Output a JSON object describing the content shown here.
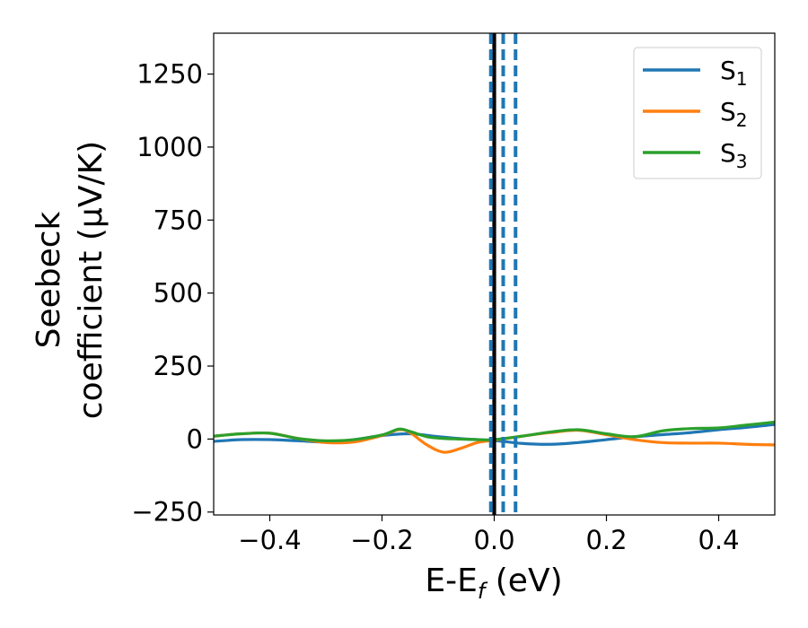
{
  "chart_data": {
    "type": "line",
    "xlabel": {
      "main": "E-E",
      "sub": "f",
      "unit": " (eV)"
    },
    "ylabel": {
      "line1": "Seebeck",
      "line2": "coefficient  (μV/K)"
    },
    "xlim": [
      -0.5,
      0.5
    ],
    "ylim": [
      -260,
      1390
    ],
    "xticks": [
      -0.4,
      -0.2,
      0.0,
      0.2,
      0.4
    ],
    "xtick_labels": [
      "−0.4",
      "−0.2",
      "0.0",
      "0.2",
      "0.4"
    ],
    "yticks": [
      -250,
      0,
      250,
      500,
      750,
      1000,
      1250
    ],
    "ytick_labels": [
      "−250",
      "0",
      "250",
      "500",
      "750",
      "1000",
      "1250"
    ],
    "grid": false,
    "legend_position": "top-right",
    "vlines": [
      {
        "x": 0.0,
        "style": "solid",
        "color": "#000000"
      },
      {
        "x": -0.006,
        "style": "dashed",
        "color": "#1f77b4"
      },
      {
        "x": 0.016,
        "style": "dashed",
        "color": "#1f77b4"
      },
      {
        "x": 0.038,
        "style": "dashed",
        "color": "#1f77b4"
      }
    ],
    "series": [
      {
        "name": "S",
        "sub": "1",
        "color": "#1f77b4",
        "x": [
          -0.5,
          -0.45,
          -0.4,
          -0.35,
          -0.3,
          -0.25,
          -0.2,
          -0.15,
          -0.1,
          -0.05,
          0.0,
          0.05,
          0.1,
          0.15,
          0.2,
          0.25,
          0.3,
          0.35,
          0.4,
          0.45,
          0.5
        ],
        "y": [
          -8,
          -2,
          -2,
          -6,
          -10,
          -2,
          12,
          18,
          8,
          0,
          -5,
          -15,
          -18,
          -12,
          -2,
          8,
          15,
          22,
          32,
          40,
          50
        ]
      },
      {
        "name": "S",
        "sub": "2",
        "color": "#ff7f0e",
        "x": [
          -0.5,
          -0.45,
          -0.4,
          -0.35,
          -0.3,
          -0.25,
          -0.2,
          -0.17,
          -0.15,
          -0.12,
          -0.09,
          -0.06,
          -0.03,
          0.0,
          0.05,
          0.1,
          0.15,
          0.2,
          0.25,
          0.3,
          0.35,
          0.4,
          0.45,
          0.5
        ],
        "y": [
          10,
          18,
          20,
          2,
          -12,
          -10,
          12,
          32,
          22,
          -20,
          -45,
          -32,
          -12,
          -4,
          10,
          22,
          30,
          15,
          -2,
          -12,
          -14,
          -14,
          -18,
          -20
        ]
      },
      {
        "name": "S",
        "sub": "3",
        "color": "#2ca02c",
        "x": [
          -0.5,
          -0.45,
          -0.4,
          -0.35,
          -0.3,
          -0.25,
          -0.2,
          -0.17,
          -0.15,
          -0.12,
          -0.09,
          -0.06,
          -0.03,
          0.0,
          0.05,
          0.1,
          0.15,
          0.2,
          0.25,
          0.3,
          0.35,
          0.4,
          0.45,
          0.5
        ],
        "y": [
          10,
          18,
          20,
          2,
          -6,
          -2,
          14,
          34,
          26,
          8,
          2,
          0,
          -2,
          -2,
          10,
          24,
          32,
          18,
          8,
          28,
          36,
          38,
          48,
          58
        ]
      }
    ]
  }
}
